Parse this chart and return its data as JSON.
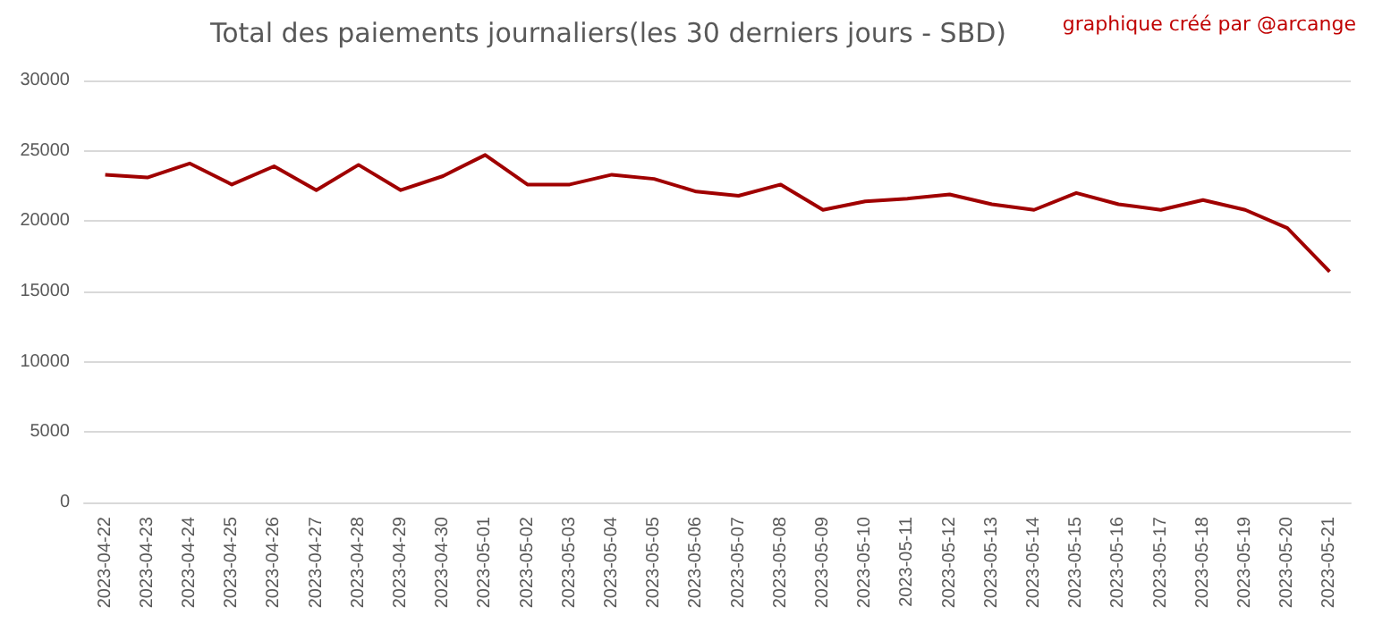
{
  "chart_data": {
    "type": "line",
    "title": "Total des paiements journaliers(les 30 derniers jours - SBD)",
    "annotations": [
      "graphique créé par @arcange"
    ],
    "categories": [
      "2023-04-22",
      "2023-04-23",
      "2023-04-24",
      "2023-04-25",
      "2023-04-26",
      "2023-04-27",
      "2023-04-28",
      "2023-04-29",
      "2023-04-30",
      "2023-05-01",
      "2023-05-02",
      "2023-05-03",
      "2023-05-04",
      "2023-05-05",
      "2023-05-06",
      "2023-05-07",
      "2023-05-08",
      "2023-05-09",
      "2023-05-10",
      "2023-05-11",
      "2023-05-12",
      "2023-05-13",
      "2023-05-14",
      "2023-05-15",
      "2023-05-16",
      "2023-05-17",
      "2023-05-18",
      "2023-05-19",
      "2023-05-20",
      "2023-05-21"
    ],
    "series": [
      {
        "color": "#a00000",
        "values": [
          23300,
          23100,
          24100,
          22600,
          23900,
          22200,
          24000,
          22200,
          23200,
          24700,
          22600,
          22600,
          23300,
          23000,
          22100,
          21800,
          22600,
          20800,
          21400,
          21600,
          21900,
          21200,
          20800,
          22000,
          21200,
          20800,
          21500,
          20800,
          19500,
          16400
        ]
      }
    ],
    "ylim": [
      0,
      30000
    ],
    "yticks": [
      0,
      5000,
      10000,
      15000,
      20000,
      25000,
      30000
    ],
    "grid": "y",
    "marker": "none",
    "line_style": "solid"
  }
}
